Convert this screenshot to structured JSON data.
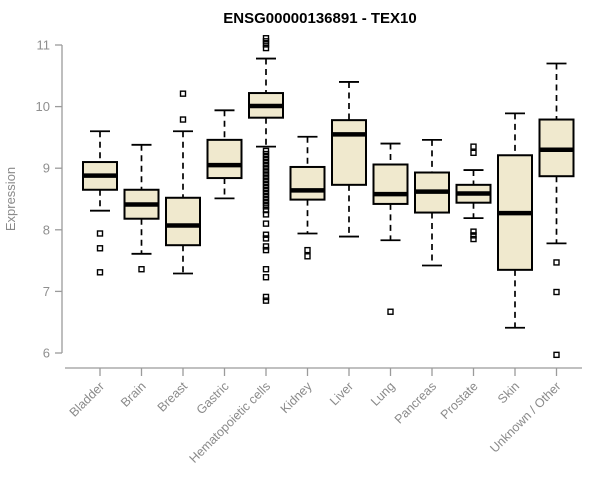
{
  "chart_data": {
    "type": "boxplot",
    "title": "ENSG00000136891 - TEX10",
    "ylabel": "Expression",
    "xlabel": "",
    "ylim": [
      6,
      11
    ],
    "yticks": [
      6,
      7,
      8,
      9,
      10,
      11
    ],
    "grid": false,
    "legend": "none",
    "categories": [
      "Bladder",
      "Brain",
      "Breast",
      "Gastric",
      "Hematopoietic cells",
      "Kidney",
      "Liver",
      "Lung",
      "Pancreas",
      "Prostate",
      "Skin",
      "Unknown / Other"
    ],
    "series": [
      {
        "label": "Bladder",
        "whisker_low": 8.31,
        "q1": 8.65,
        "median": 8.88,
        "q3": 9.1,
        "whisker_high": 9.6,
        "outliers": [
          7.94,
          7.7,
          7.31
        ]
      },
      {
        "label": "Brain",
        "whisker_low": 7.61,
        "q1": 8.18,
        "median": 8.41,
        "q3": 8.65,
        "whisker_high": 9.38,
        "outliers": [
          7.36
        ]
      },
      {
        "label": "Breast",
        "whisker_low": 7.29,
        "q1": 7.75,
        "median": 8.07,
        "q3": 8.52,
        "whisker_high": 9.6,
        "outliers": [
          10.21,
          9.79
        ]
      },
      {
        "label": "Gastric",
        "whisker_low": 8.51,
        "q1": 8.84,
        "median": 9.05,
        "q3": 9.46,
        "whisker_high": 9.94,
        "outliers": []
      },
      {
        "label": "Hematopoietic cells",
        "whisker_low": 9.35,
        "q1": 9.82,
        "median": 10.01,
        "q3": 10.22,
        "whisker_high": 10.78,
        "outliers": [
          11.11,
          11.06,
          11.01,
          10.95,
          9.28,
          9.23,
          9.18,
          9.13,
          9.08,
          9.03,
          8.98,
          8.93,
          8.88,
          8.83,
          8.78,
          8.73,
          8.68,
          8.63,
          8.58,
          8.53,
          8.48,
          8.43,
          8.38,
          8.32,
          8.25,
          8.1,
          7.92,
          7.86,
          7.73,
          7.67,
          7.36,
          7.23,
          6.91,
          6.85
        ]
      },
      {
        "label": "Kidney",
        "whisker_low": 7.94,
        "q1": 8.49,
        "median": 8.64,
        "q3": 9.02,
        "whisker_high": 9.51,
        "outliers": [
          7.67,
          7.57
        ]
      },
      {
        "label": "Liver",
        "whisker_low": 7.89,
        "q1": 8.73,
        "median": 9.55,
        "q3": 9.78,
        "whisker_high": 10.4,
        "outliers": []
      },
      {
        "label": "Lung",
        "whisker_low": 7.83,
        "q1": 8.42,
        "median": 8.58,
        "q3": 9.06,
        "whisker_high": 9.4,
        "outliers": [
          6.67
        ]
      },
      {
        "label": "Pancreas",
        "whisker_low": 7.42,
        "q1": 8.28,
        "median": 8.62,
        "q3": 8.93,
        "whisker_high": 9.46,
        "outliers": []
      },
      {
        "label": "Prostate",
        "whisker_low": 8.19,
        "q1": 8.44,
        "median": 8.59,
        "q3": 8.73,
        "whisker_high": 8.97,
        "outliers": [
          9.35,
          9.25,
          7.97,
          7.91,
          7.85
        ]
      },
      {
        "label": "Skin",
        "whisker_low": 6.41,
        "q1": 7.35,
        "median": 8.27,
        "q3": 9.21,
        "whisker_high": 9.89,
        "outliers": []
      },
      {
        "label": "Unknown / Other",
        "whisker_low": 7.78,
        "q1": 8.87,
        "median": 9.3,
        "q3": 9.79,
        "whisker_high": 10.7,
        "outliers": [
          7.47,
          6.99,
          5.97
        ]
      }
    ]
  },
  "style": {
    "box_fill": "#F0E9CE",
    "box_stroke": "#000000",
    "median_color": "#000000",
    "whisker_color": "#000000",
    "outlier_color": "#000000",
    "axis_color": "#9B9B9B",
    "tick_label_color": "#8F8F8F",
    "category_label_color": "#8A8A8A",
    "title_color": "#000000",
    "background": "#FFFFFF"
  }
}
